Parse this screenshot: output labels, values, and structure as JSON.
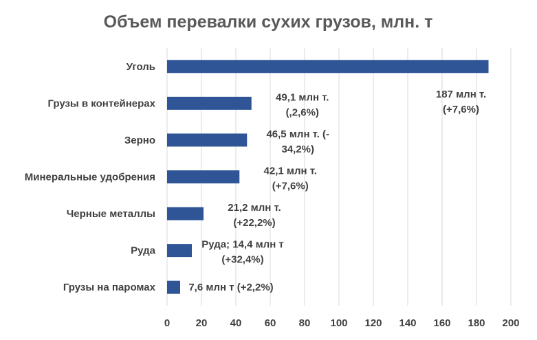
{
  "chart_data": {
    "type": "bar",
    "orientation": "horizontal",
    "title": "Объем перевалки сухих грузов, млн. т",
    "xlabel": "",
    "ylabel": "",
    "xlim": [
      0,
      200
    ],
    "ticks": [
      "0",
      "20",
      "40",
      "60",
      "80",
      "100",
      "120",
      "140",
      "160",
      "180",
      "200"
    ],
    "grid": true,
    "legend": "none",
    "bar_color": "#2f5597",
    "categories": [
      "Уголь",
      "Грузы в контейнерах",
      "Зерно",
      "Минеральные удобрения",
      "Черные металлы",
      "Руда",
      "Грузы на паромах"
    ],
    "values": [
      187,
      49.1,
      46.5,
      42.1,
      21.2,
      14.4,
      7.6
    ],
    "data_labels": [
      [
        "187 млн т.",
        "(+7,6%)"
      ],
      [
        "49,1 млн т.",
        "(,2,6%)"
      ],
      [
        "46,5 млн т. (-",
        "34,2%)"
      ],
      [
        "42,1 млн т.",
        "(+7,6%)"
      ],
      [
        "21,2 млн т.",
        "(+22,2%)"
      ],
      [
        "Руда; 14,4 млн т",
        "(+32,4%)"
      ],
      [
        "7,6 млн т (+2,2%)"
      ]
    ]
  }
}
